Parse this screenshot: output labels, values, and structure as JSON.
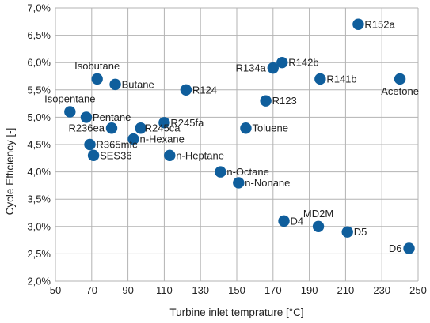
{
  "chart_data": {
    "type": "scatter",
    "title": "",
    "xlabel": "Turbine inlet temprature [°C]",
    "ylabel": "Cycle Efficiency [-]",
    "xlim": [
      50,
      250
    ],
    "ylim": [
      2.0,
      7.0
    ],
    "xticks": [
      "50",
      "70",
      "90",
      "110",
      "130",
      "150",
      "170",
      "190",
      "210",
      "230",
      "250"
    ],
    "yticks": [
      "2,0%",
      "2,5%",
      "3,0%",
      "3,5%",
      "4,0%",
      "4,5%",
      "5,0%",
      "5,5%",
      "6,0%",
      "6,5%",
      "7,0%"
    ],
    "grid": true,
    "marker_color": "#0f5e9c",
    "points": [
      {
        "label": "Isobutane",
        "x": 73,
        "y": 5.7,
        "anchor": "above"
      },
      {
        "label": "Butane",
        "x": 83,
        "y": 5.6,
        "anchor": "right"
      },
      {
        "label": "R124",
        "x": 122,
        "y": 5.5,
        "anchor": "right"
      },
      {
        "label": "Isopentane",
        "x": 58,
        "y": 5.1,
        "anchor": "above"
      },
      {
        "label": "Pentane",
        "x": 67,
        "y": 5.0,
        "anchor": "right"
      },
      {
        "label": "R236ea",
        "x": 81,
        "y": 4.8,
        "anchor": "left"
      },
      {
        "label": "R245ca",
        "x": 97,
        "y": 4.8,
        "anchor": "right-tight"
      },
      {
        "label": "R245fa",
        "x": 110,
        "y": 4.9,
        "anchor": "right"
      },
      {
        "label": "n-Hexane",
        "x": 93,
        "y": 4.6,
        "anchor": "right"
      },
      {
        "label": "R365mfc",
        "x": 69,
        "y": 4.5,
        "anchor": "right"
      },
      {
        "label": "SES36",
        "x": 71,
        "y": 4.3,
        "anchor": "right"
      },
      {
        "label": "n-Heptane",
        "x": 113,
        "y": 4.3,
        "anchor": "right"
      },
      {
        "label": "n-Octane",
        "x": 141,
        "y": 4.0,
        "anchor": "right"
      },
      {
        "label": "n-Nonane",
        "x": 151,
        "y": 3.8,
        "anchor": "right"
      },
      {
        "label": "R134a",
        "x": 170,
        "y": 5.9,
        "anchor": "left"
      },
      {
        "label": "R142b",
        "x": 175,
        "y": 6.0,
        "anchor": "right"
      },
      {
        "label": "R141b",
        "x": 196,
        "y": 5.7,
        "anchor": "right"
      },
      {
        "label": "R123",
        "x": 166,
        "y": 5.3,
        "anchor": "right"
      },
      {
        "label": "Toluene",
        "x": 155,
        "y": 4.8,
        "anchor": "right"
      },
      {
        "label": "R152a",
        "x": 217,
        "y": 6.7,
        "anchor": "right"
      },
      {
        "label": "Acetone",
        "x": 240,
        "y": 5.7,
        "anchor": "below"
      },
      {
        "label": "D4",
        "x": 176,
        "y": 3.1,
        "anchor": "right"
      },
      {
        "label": "MD2M",
        "x": 195,
        "y": 3.0,
        "anchor": "above"
      },
      {
        "label": "D5",
        "x": 211,
        "y": 2.9,
        "anchor": "right"
      },
      {
        "label": "D6",
        "x": 245,
        "y": 2.6,
        "anchor": "left"
      }
    ]
  }
}
